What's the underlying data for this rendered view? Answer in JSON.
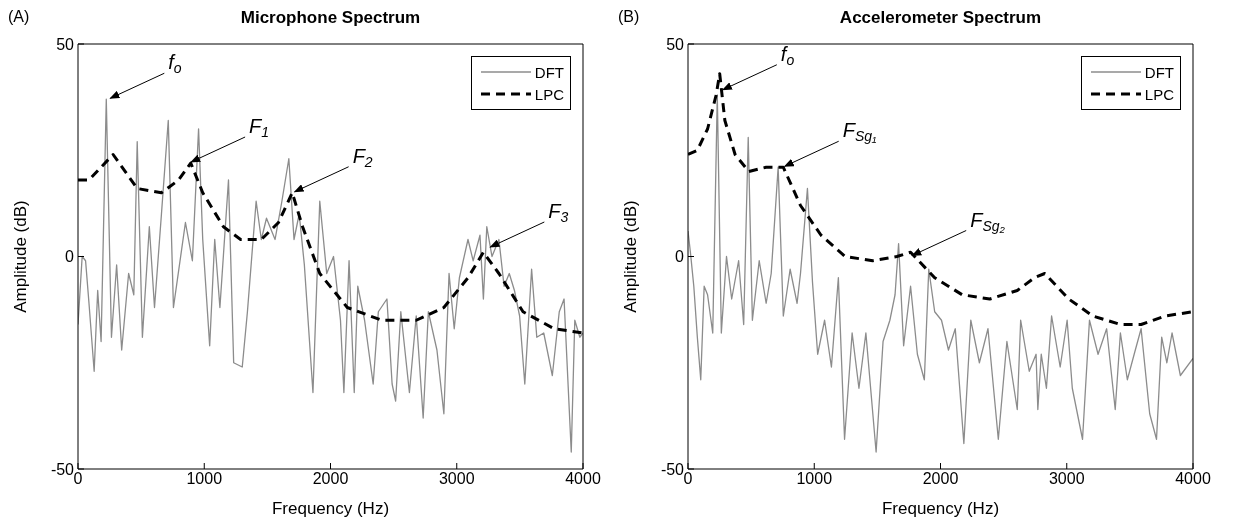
{
  "chart_data": [
    {
      "type": "line",
      "title": "Microphone Spectrum",
      "xlabel": "Frequency (Hz)",
      "ylabel": "Amplitude (dB)",
      "xlim": [
        0,
        4000
      ],
      "xticks": [
        0,
        1000,
        2000,
        3000,
        4000
      ],
      "ylim": [
        -50,
        50
      ],
      "yticks": [
        -50,
        0,
        50
      ],
      "grid": false,
      "legend": "top right",
      "marker": "none",
      "series": [
        {
          "name": "DFT",
          "color": "#8c8c8c",
          "line_style": "solid",
          "x": [
            0,
            33,
            60,
            87,
            128,
            156,
            183,
            224,
            265,
            306,
            346,
            401,
            442,
            469,
            510,
            565,
            606,
            661,
            715,
            756,
            851,
            906,
            955,
            988,
            1043,
            1083,
            1124,
            1192,
            1233,
            1301,
            1342,
            1411,
            1452,
            1493,
            1561,
            1615,
            1670,
            1711,
            1752,
            1793,
            1861,
            1915,
            1970,
            2024,
            2079,
            2106,
            2147,
            2188,
            2216,
            2270,
            2338,
            2379,
            2447,
            2488,
            2516,
            2557,
            2625,
            2679,
            2734,
            2775,
            2843,
            2898,
            2939,
            2980,
            3021,
            3089,
            3130,
            3184,
            3211,
            3238,
            3279,
            3334,
            3375,
            3416,
            3457,
            3498,
            3539,
            3593,
            3634,
            3689,
            3757,
            3812,
            3850,
            3907,
            3935,
            3975,
            4000
          ],
          "values": [
            -16,
            0,
            -1,
            -11,
            -27,
            -8,
            -20,
            37,
            -19,
            -2,
            -22,
            -4,
            -9,
            27,
            -19,
            7,
            -12,
            10,
            32,
            -12,
            8,
            -1,
            30,
            4,
            -21,
            4,
            -12,
            18,
            -25,
            -26,
            -13,
            13,
            4,
            9,
            4,
            13,
            23,
            4,
            10,
            -2,
            -32,
            13,
            -4,
            0,
            -15,
            -32,
            -1,
            -32,
            -7,
            -15,
            -30,
            -13,
            -10,
            -30,
            -34,
            -13,
            -32,
            -14,
            -38,
            -13,
            -22,
            -37,
            -4,
            -17,
            -5,
            4,
            -1,
            5,
            -10,
            7,
            0,
            4,
            -7,
            -4,
            -8,
            -14,
            -30,
            -3,
            -19,
            -18,
            -28,
            -13,
            -10,
            -46,
            -15,
            -19,
            -18
          ]
        },
        {
          "name": "LPC",
          "color": "#000000",
          "line_style": "dashed",
          "x": [
            0,
            87,
            278,
            469,
            661,
            797,
            893,
            988,
            1152,
            1288,
            1452,
            1588,
            1697,
            1779,
            1915,
            2133,
            2406,
            2679,
            2898,
            3089,
            3211,
            3334,
            3525,
            3771,
            4000
          ],
          "values": [
            18,
            18,
            24,
            16,
            15,
            18,
            22,
            15,
            7,
            4,
            4,
            8,
            15,
            7,
            -4,
            -12,
            -15,
            -15,
            -12,
            -5,
            1,
            -4,
            -13,
            -17,
            -18
          ]
        }
      ],
      "annotations": [
        "(A)",
        {
          "text": "f$_{o}$",
          "x": 240,
          "y": 37
        },
        {
          "text": "F$_{1}$",
          "x": 880,
          "y": 22
        },
        {
          "text": "F$_{2}$",
          "x": 1700,
          "y": 15
        },
        {
          "text": "F$_{3}$",
          "x": 3250,
          "y": 2
        }
      ]
    },
    {
      "type": "line",
      "title": "Accelerometer Spectrum",
      "xlabel": "Frequency (Hz)",
      "ylabel": "Amplitude (dB)",
      "xlim": [
        0,
        4000
      ],
      "xticks": [
        0,
        1000,
        2000,
        3000,
        4000
      ],
      "ylim": [
        -50,
        50
      ],
      "yticks": [
        -50,
        0,
        50
      ],
      "grid": false,
      "legend": "top right",
      "marker": "none",
      "series": [
        {
          "name": "DFT",
          "color": "#8c8c8c",
          "line_style": "solid",
          "x": [
            0,
            19,
            46,
            74,
            101,
            128,
            155,
            196,
            232,
            264,
            305,
            346,
            401,
            441,
            477,
            510,
            564,
            619,
            659,
            714,
            755,
            809,
            864,
            891,
            946,
            986,
            1027,
            1082,
            1136,
            1191,
            1240,
            1300,
            1354,
            1409,
            1490,
            1545,
            1599,
            1640,
            1668,
            1708,
            1763,
            1817,
            1872,
            1907,
            1954,
            2008,
            2063,
            2117,
            2185,
            2240,
            2308,
            2376,
            2458,
            2526,
            2608,
            2635,
            2703,
            2757,
            2771,
            2798,
            2839,
            2880,
            2948,
            3003,
            3044,
            3125,
            3180,
            3248,
            3316,
            3384,
            3425,
            3480,
            3534,
            3589,
            3657,
            3711,
            3752,
            3793,
            3834,
            3900,
            4000
          ],
          "values": [
            6,
            1,
            -7,
            -19,
            -29,
            -7,
            -9,
            -18,
            38,
            -18,
            0,
            -10,
            -1,
            -16,
            28,
            -15,
            -1,
            -11,
            -4,
            21,
            -14,
            -3,
            -11,
            -4,
            16,
            -6,
            -23,
            -15,
            -26,
            -5,
            -43,
            -18,
            -31,
            -18,
            -46,
            -20,
            -15,
            -9,
            3,
            -21,
            -7,
            -23,
            -29,
            -3,
            -13,
            -15,
            -22,
            -17,
            -44,
            -15,
            -25,
            -17,
            -43,
            -20,
            -36,
            -15,
            -27,
            -23,
            -36,
            -23,
            -31,
            -14,
            -26,
            -15,
            -31,
            -43,
            -15,
            -23,
            -17,
            -36,
            -18,
            -29,
            -23,
            -17,
            -37,
            -43,
            -19,
            -25,
            -18,
            -28,
            -24
          ]
        },
        {
          "name": "LPC",
          "color": "#000000",
          "line_style": "dashed",
          "x": [
            0,
            74,
            155,
            223,
            251,
            292,
            373,
            482,
            619,
            755,
            891,
            1054,
            1245,
            1463,
            1654,
            1763,
            1954,
            2172,
            2390,
            2608,
            2744,
            2826,
            3016,
            3207,
            3425,
            3589,
            3779,
            4000
          ],
          "values": [
            24,
            25,
            30,
            38,
            43,
            32,
            24,
            20,
            21,
            21,
            12,
            5,
            0,
            -1,
            0,
            1,
            -5,
            -9,
            -10,
            -8,
            -5,
            -4,
            -10,
            -14,
            -16,
            -16,
            -14,
            -13
          ]
        }
      ],
      "annotations": [
        "(B)",
        {
          "text": "f$_{o}$",
          "x": 260,
          "y": 39
        },
        {
          "text": "F$_{Sg₁}$",
          "x": 750,
          "y": 21
        },
        {
          "text": "F$_{Sg₂}$",
          "x": 1760,
          "y": 0
        }
      ]
    }
  ]
}
